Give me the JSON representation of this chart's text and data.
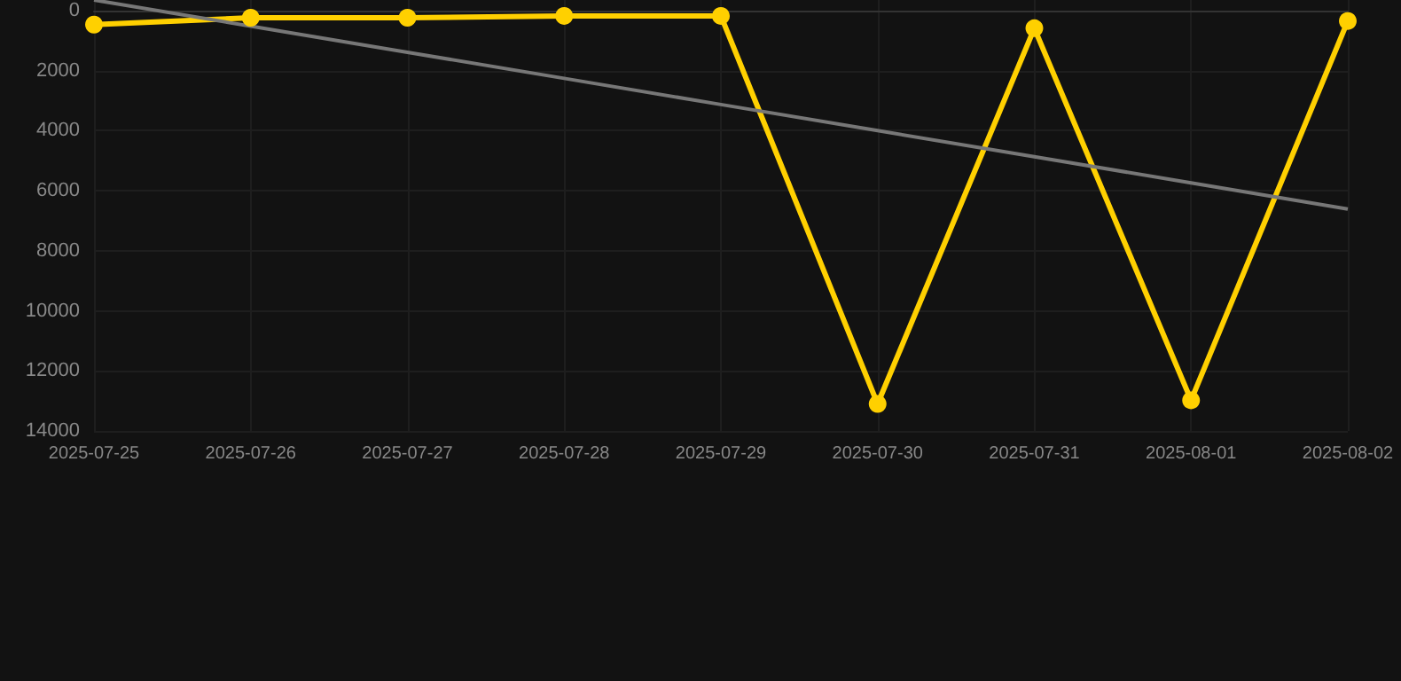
{
  "chart_data": {
    "type": "line",
    "categories": [
      "2025-07-25",
      "2025-07-26",
      "2025-07-27",
      "2025-07-28",
      "2025-07-29",
      "2025-07-30",
      "2025-07-31",
      "2025-08-01",
      "2025-08-02"
    ],
    "series": [
      {
        "color": "#ffd000",
        "values": [
          470,
          240,
          240,
          180,
          180,
          13100,
          590,
          12980,
          350
        ],
        "marker": "circle"
      },
      {
        "type": "line",
        "color": "#777777",
        "values": [
          -350,
          520,
          1390,
          2260,
          3130,
          4000,
          4870,
          5740,
          6610
        ],
        "marker": "none"
      }
    ],
    "ylim": [
      14000,
      -350
    ],
    "yticks": [
      0,
      2000,
      4000,
      6000,
      8000,
      10000,
      12000,
      14000
    ],
    "grid": true
  }
}
